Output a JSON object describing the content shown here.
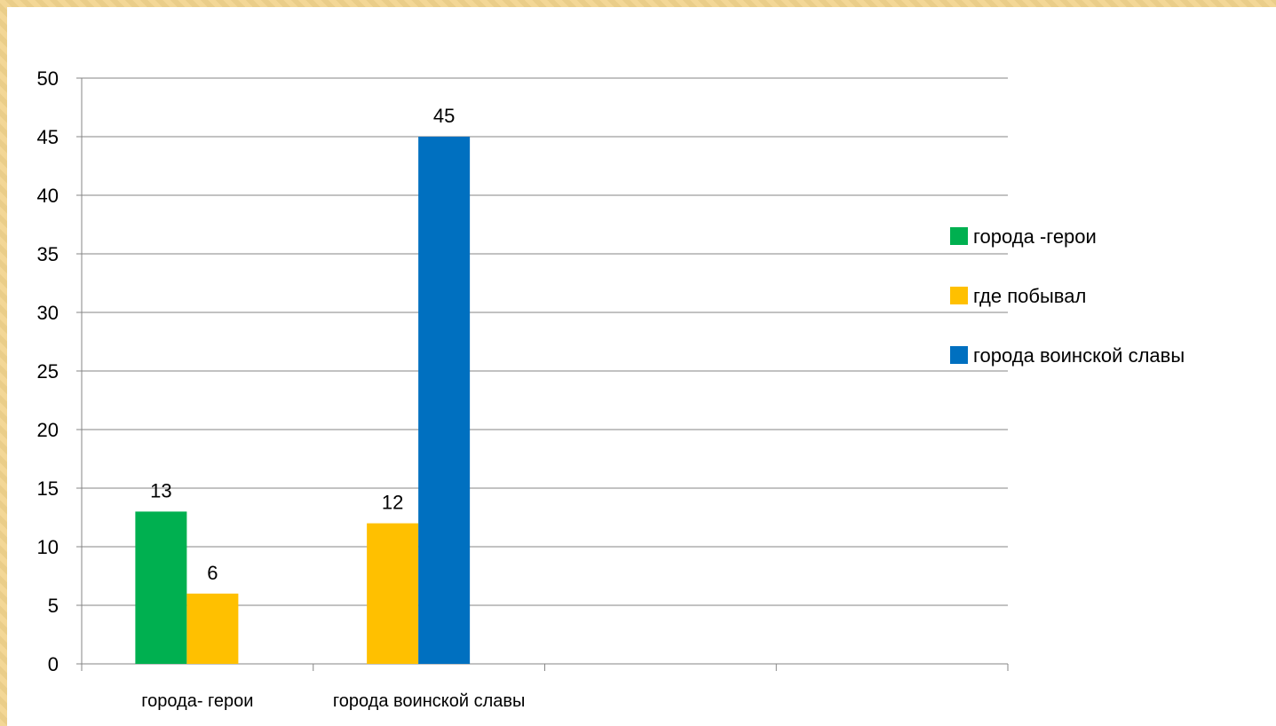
{
  "chart_data": {
    "type": "bar",
    "title": "",
    "xlabel": "",
    "ylabel": "",
    "ylim": [
      0,
      50
    ],
    "ytick_step": 5,
    "categories": [
      "города- герои",
      "города воинской славы",
      "",
      ""
    ],
    "series": [
      {
        "name": "города -герои",
        "color": "#00b050",
        "values": [
          13,
          null,
          null,
          null
        ]
      },
      {
        "name": "где побывал",
        "color": "#ffc000",
        "values": [
          6,
          12,
          null,
          null
        ]
      },
      {
        "name": "города воинской славы",
        "color": "#0070c0",
        "values": [
          null,
          45,
          null,
          null
        ]
      }
    ],
    "legend_order": [
      0,
      1,
      2
    ],
    "legend_position": "right",
    "grid": true,
    "data_labels": true
  }
}
